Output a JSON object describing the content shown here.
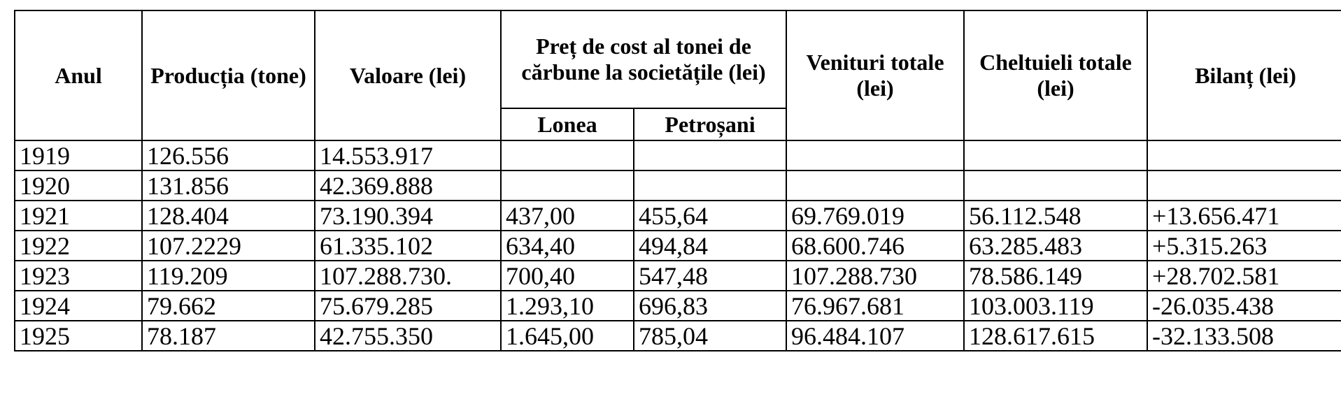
{
  "table": {
    "headers": {
      "year": "Anul",
      "production": "Producția (tone)",
      "value": "Valoare (lei)",
      "cost_group": "Preț de cost al tonei de cărbune la societățile (lei)",
      "lonea": "Lonea",
      "petrosani": "Petroșani",
      "revenue": "Venituri totale (lei)",
      "expenses": "Cheltuieli totale (lei)",
      "balance": "Bilanț (lei)"
    },
    "rows": [
      [
        "1919",
        "126.556",
        "14.553.917",
        "",
        "",
        "",
        "",
        ""
      ],
      [
        "1920",
        "131.856",
        "42.369.888",
        "",
        "",
        "",
        "",
        ""
      ],
      [
        "1921",
        "128.404",
        "73.190.394",
        "437,00",
        "455,64",
        "69.769.019",
        "56.112.548",
        "+13.656.471"
      ],
      [
        "1922",
        "107.2229",
        "61.335.102",
        "634,40",
        "494,84",
        "68.600.746",
        "63.285.483",
        "+5.315.263"
      ],
      [
        "1923",
        "119.209",
        "107.288.730.",
        "700,40",
        "547,48",
        "107.288.730",
        "78.586.149",
        "+28.702.581"
      ],
      [
        "1924",
        "79.662",
        "75.679.285",
        "1.293,10",
        "696,83",
        "76.967.681",
        "103.003.119",
        "-26.035.438"
      ],
      [
        "1925",
        "78.187",
        "42.755.350",
        "1.645,00",
        "785,04",
        "96.484.107",
        "128.617.615",
        "-32.133.508"
      ]
    ]
  }
}
